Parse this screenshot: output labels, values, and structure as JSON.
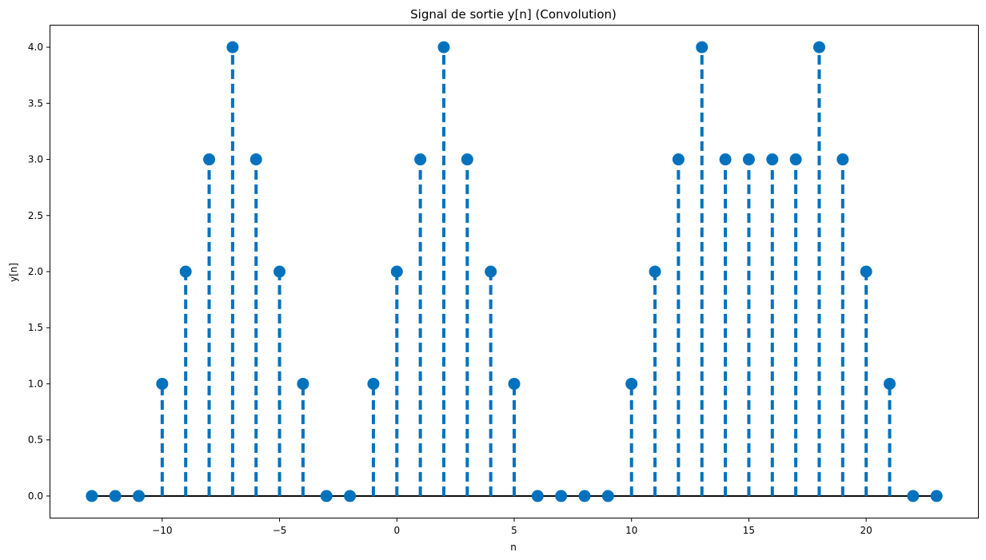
{
  "chart_data": {
    "type": "stem",
    "title": "Signal de sortie y[n] (Convolution)",
    "xlabel": "n",
    "ylabel": "y[n]",
    "xlim": [
      -14.8,
      24.8
    ],
    "ylim": [
      -0.2,
      4.2
    ],
    "x_ticks": [
      -10,
      -5,
      0,
      5,
      10,
      15,
      20
    ],
    "x_tick_labels": [
      "−10",
      "−5",
      "0",
      "5",
      "10",
      "15",
      "20"
    ],
    "y_ticks": [
      0.0,
      0.5,
      1.0,
      1.5,
      2.0,
      2.5,
      3.0,
      3.5,
      4.0
    ],
    "y_tick_labels": [
      "0.0",
      "0.5",
      "1.0",
      "1.5",
      "2.0",
      "2.5",
      "3.0",
      "3.5",
      "4.0"
    ],
    "grid": false,
    "series": [
      {
        "x": [
          -13,
          -12,
          -11,
          -10,
          -9,
          -8,
          -7,
          -6,
          -5,
          -4,
          -3,
          -2,
          -1,
          0,
          1,
          2,
          3,
          4,
          5,
          6,
          7,
          8,
          9,
          10,
          11,
          12,
          13,
          14,
          15,
          16,
          17,
          18,
          19,
          20,
          21,
          22,
          23
        ],
        "values": [
          0,
          0,
          0,
          1,
          2,
          3,
          4,
          3,
          2,
          1,
          0,
          0,
          1,
          2,
          3,
          4,
          3,
          2,
          1,
          0,
          0,
          0,
          0,
          1,
          2,
          3,
          4,
          3,
          3,
          3,
          3,
          4,
          3,
          2,
          1,
          0,
          0
        ]
      }
    ],
    "stem_color": "#0072BD",
    "stem_style": "dashed",
    "baseline_color": "#000000"
  }
}
